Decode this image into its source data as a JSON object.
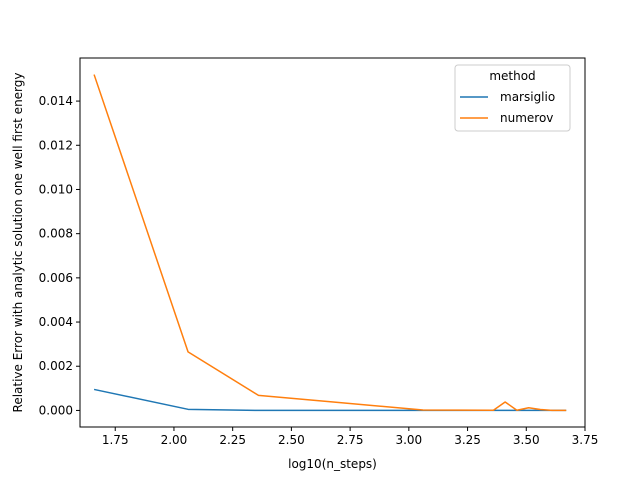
{
  "chart_data": {
    "type": "line",
    "xlabel": "log10(n_steps)",
    "ylabel": "Relative Error with analytic solution one well first energy",
    "xlim": [
      1.6,
      3.75
    ],
    "ylim": [
      -0.00075,
      0.01595
    ],
    "x_ticks": [
      1.75,
      2.0,
      2.25,
      2.5,
      2.75,
      3.0,
      3.25,
      3.5,
      3.75
    ],
    "x_tick_labels": [
      "1.75",
      "2.00",
      "2.25",
      "2.50",
      "2.75",
      "3.00",
      "3.25",
      "3.50",
      "3.75"
    ],
    "y_ticks": [
      0.0,
      0.002,
      0.004,
      0.006,
      0.008,
      0.01,
      0.012,
      0.014
    ],
    "y_tick_labels": [
      "0.000",
      "0.002",
      "0.004",
      "0.006",
      "0.008",
      "0.010",
      "0.012",
      "0.014"
    ],
    "grid": false,
    "legend": {
      "title": "method",
      "placement": "top-right"
    },
    "series": [
      {
        "name": "marsiglio",
        "color": "#1f77b4",
        "x": [
          1.66,
          2.06,
          2.36,
          2.66,
          3.06,
          3.36,
          3.41,
          3.46,
          3.51,
          3.56,
          3.61,
          3.67
        ],
        "y": [
          0.00095,
          5e-05,
          0.0,
          0.0,
          0.0,
          0.0,
          0.0,
          0.0,
          0.0,
          0.0,
          0.0,
          0.0
        ]
      },
      {
        "name": "numerov",
        "color": "#ff7f0e",
        "x": [
          1.66,
          2.06,
          2.36,
          2.66,
          3.06,
          3.36,
          3.41,
          3.46,
          3.51,
          3.56,
          3.61,
          3.67
        ],
        "y": [
          0.0152,
          0.00265,
          0.00068,
          0.0004,
          2e-05,
          1e-05,
          0.00038,
          1e-05,
          0.00012,
          4e-05,
          0.0,
          0.0
        ]
      }
    ]
  }
}
